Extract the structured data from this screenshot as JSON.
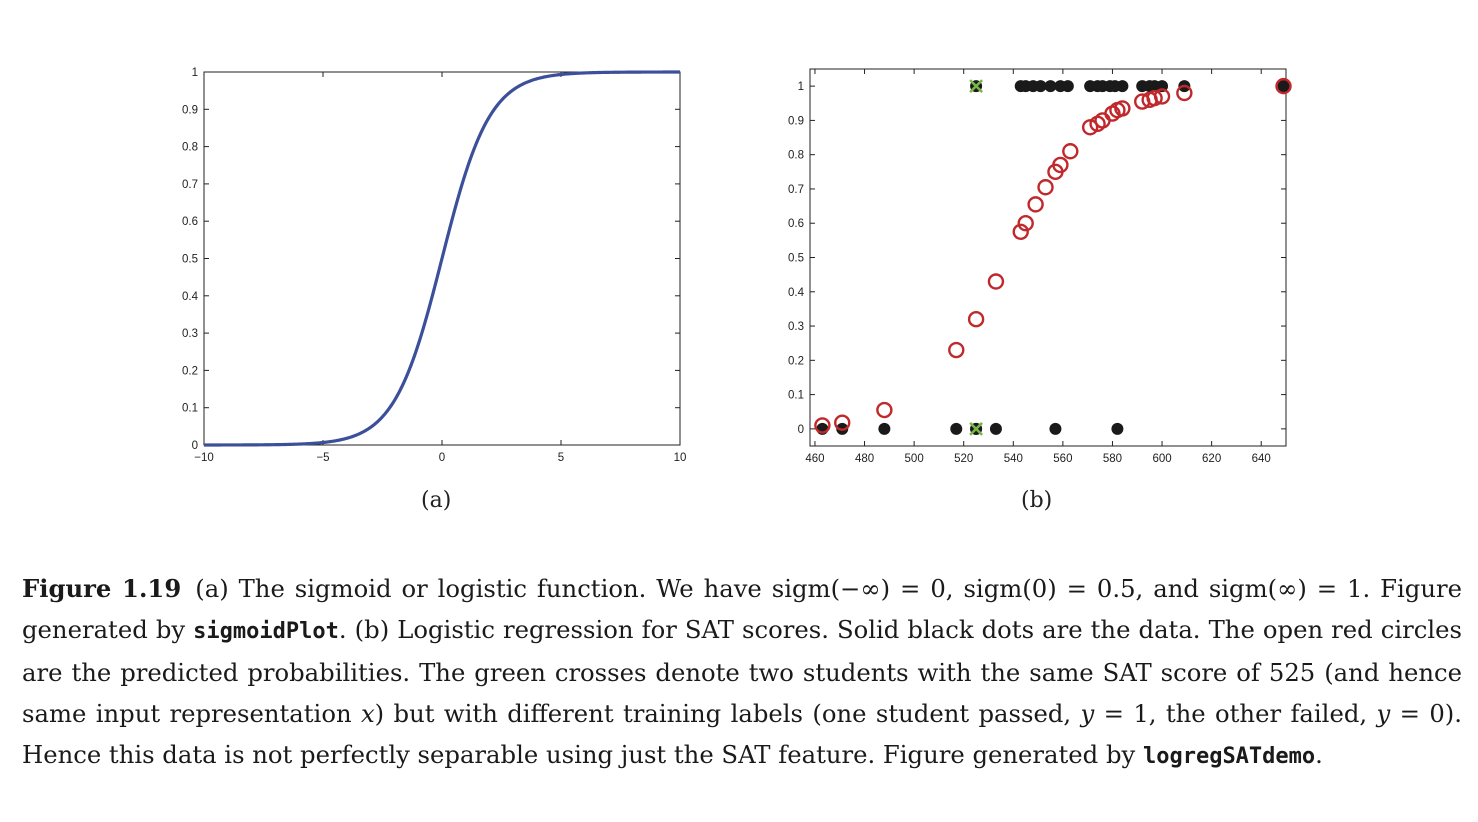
{
  "figure": {
    "panel_a_label": "(a)",
    "panel_b_label": "(b)"
  },
  "chart_data": [
    {
      "type": "line",
      "panel": "(a)",
      "title": "",
      "xlabel": "",
      "ylabel": "",
      "xlim": [
        -10,
        10
      ],
      "ylim": [
        0,
        1
      ],
      "xticks": [
        -10,
        -5,
        0,
        5,
        10
      ],
      "yticks": [
        0,
        0.1,
        0.2,
        0.3,
        0.4,
        0.5,
        0.6,
        0.7,
        0.8,
        0.9,
        1
      ],
      "xtick_labels": [
        "−10",
        "−5",
        "0",
        "5",
        "10"
      ],
      "ytick_labels": [
        "0",
        "0.1",
        "0.2",
        "0.3",
        "0.4",
        "0.5",
        "0.6",
        "0.7",
        "0.8",
        "0.9",
        "1"
      ],
      "series": [
        {
          "color": "#3b4f9a",
          "x": [
            -10,
            -9,
            -8,
            -7,
            -6,
            -5,
            -4,
            -3,
            -2.5,
            -2,
            -1.5,
            -1,
            -0.5,
            0,
            0.5,
            1,
            1.5,
            2,
            2.5,
            3,
            4,
            5,
            6,
            7,
            8,
            9,
            10
          ],
          "y": [
            4.54e-05,
            0.000123,
            0.000335,
            0.000911,
            0.00247,
            0.00669,
            0.018,
            0.0474,
            0.0759,
            0.1192,
            0.1824,
            0.2689,
            0.3775,
            0.5,
            0.6225,
            0.7311,
            0.8176,
            0.8808,
            0.9241,
            0.9526,
            0.982,
            0.9933,
            0.9975,
            0.9991,
            0.99966,
            0.99988,
            0.99995
          ]
        }
      ],
      "grid": false
    },
    {
      "type": "scatter",
      "panel": "(b)",
      "title": "",
      "xlabel": "",
      "ylabel": "",
      "xlim": [
        458,
        650
      ],
      "ylim": [
        -0.05,
        1.05
      ],
      "xticks": [
        460,
        480,
        500,
        520,
        540,
        560,
        580,
        600,
        620,
        640
      ],
      "yticks": [
        0,
        0.1,
        0.2,
        0.3,
        0.4,
        0.5,
        0.6,
        0.7,
        0.8,
        0.9,
        1
      ],
      "xtick_labels": [
        "460",
        "480",
        "500",
        "520",
        "540",
        "560",
        "580",
        "600",
        "620",
        "640"
      ],
      "ytick_labels": [
        "0",
        "0.1",
        "0.2",
        "0.3",
        "0.4",
        "0.5",
        "0.6",
        "0.7",
        "0.8",
        "0.9",
        "1"
      ],
      "series": [
        {
          "marker": "filled-circle",
          "color": "#1a1a1a",
          "x": [
            463,
            471,
            488,
            517,
            525,
            533,
            557,
            582,
            543,
            545,
            548,
            551,
            555,
            559,
            562,
            571,
            574,
            576,
            579,
            581,
            584,
            592,
            595,
            597,
            600,
            609,
            649
          ],
          "y": [
            0,
            0,
            0,
            0,
            0,
            0,
            0,
            0,
            1,
            1,
            1,
            1,
            1,
            1,
            1,
            1,
            1,
            1,
            1,
            1,
            1,
            1,
            1,
            1,
            1,
            1,
            1
          ]
        },
        {
          "marker": "open-circle",
          "color": "#c0282b",
          "x": [
            463,
            471,
            488,
            517,
            525,
            533,
            543,
            545,
            549,
            553,
            557,
            559,
            563,
            571,
            574,
            576,
            580,
            582,
            584,
            592,
            595,
            597,
            600,
            609,
            649
          ],
          "y": [
            0.01,
            0.018,
            0.055,
            0.23,
            0.32,
            0.43,
            0.575,
            0.6,
            0.655,
            0.705,
            0.75,
            0.77,
            0.81,
            0.88,
            0.89,
            0.9,
            0.92,
            0.93,
            0.935,
            0.955,
            0.96,
            0.965,
            0.97,
            0.98,
            1.0
          ]
        },
        {
          "marker": "cross",
          "color": "#7ab648",
          "x": [
            525,
            525
          ],
          "y": [
            1,
            0
          ]
        }
      ],
      "grid": false
    }
  ],
  "caption": {
    "label": "Figure 1.19",
    "seg1": "(a) The sigmoid or logistic function.  We have sigm(−∞) = 0, sigm(0) = 0.5, and sigm(∞) = 1. Figure generated by ",
    "code1": "sigmoidPlot",
    "seg2": ". (b) Logistic regression for SAT scores. Solid black dots are the data. The open red circles are the predicted probabilities. The green crosses denote two students with the same SAT score of 525 (and hence same input representation ",
    "var_x": "x",
    "seg3": ") but with different training labels (one student passed, ",
    "var_y1": "y",
    "seg4": " = 1, the other failed, ",
    "var_y2": "y",
    "seg5": " = 0). Hence this data is not perfectly separable using just the SAT feature. Figure generated by ",
    "code2": "logregSATdemo",
    "seg6": "."
  }
}
